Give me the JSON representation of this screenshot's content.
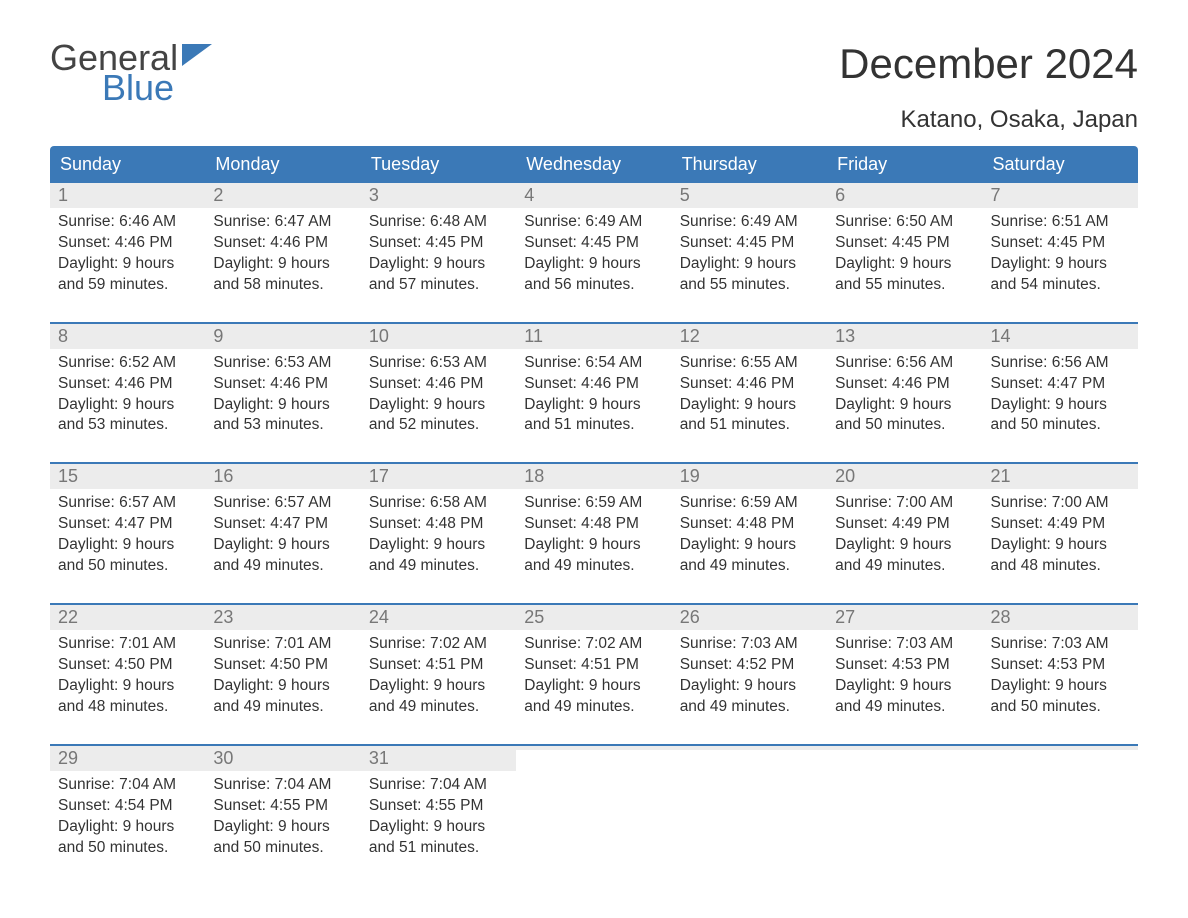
{
  "logo": {
    "word1": "General",
    "word2": "Blue"
  },
  "title": "December 2024",
  "location": "Katano, Osaka, Japan",
  "colors": {
    "header_bg": "#3b79b7",
    "daynum_bg": "#ececec",
    "text": "#333333",
    "logo_gray": "#444444",
    "logo_blue": "#3b79b7"
  },
  "day_names": [
    "Sunday",
    "Monday",
    "Tuesday",
    "Wednesday",
    "Thursday",
    "Friday",
    "Saturday"
  ],
  "weeks": [
    [
      {
        "n": "1",
        "sunrise": "Sunrise: 6:46 AM",
        "sunset": "Sunset: 4:46 PM",
        "d1": "Daylight: 9 hours",
        "d2": "and 59 minutes."
      },
      {
        "n": "2",
        "sunrise": "Sunrise: 6:47 AM",
        "sunset": "Sunset: 4:46 PM",
        "d1": "Daylight: 9 hours",
        "d2": "and 58 minutes."
      },
      {
        "n": "3",
        "sunrise": "Sunrise: 6:48 AM",
        "sunset": "Sunset: 4:45 PM",
        "d1": "Daylight: 9 hours",
        "d2": "and 57 minutes."
      },
      {
        "n": "4",
        "sunrise": "Sunrise: 6:49 AM",
        "sunset": "Sunset: 4:45 PM",
        "d1": "Daylight: 9 hours",
        "d2": "and 56 minutes."
      },
      {
        "n": "5",
        "sunrise": "Sunrise: 6:49 AM",
        "sunset": "Sunset: 4:45 PM",
        "d1": "Daylight: 9 hours",
        "d2": "and 55 minutes."
      },
      {
        "n": "6",
        "sunrise": "Sunrise: 6:50 AM",
        "sunset": "Sunset: 4:45 PM",
        "d1": "Daylight: 9 hours",
        "d2": "and 55 minutes."
      },
      {
        "n": "7",
        "sunrise": "Sunrise: 6:51 AM",
        "sunset": "Sunset: 4:45 PM",
        "d1": "Daylight: 9 hours",
        "d2": "and 54 minutes."
      }
    ],
    [
      {
        "n": "8",
        "sunrise": "Sunrise: 6:52 AM",
        "sunset": "Sunset: 4:46 PM",
        "d1": "Daylight: 9 hours",
        "d2": "and 53 minutes."
      },
      {
        "n": "9",
        "sunrise": "Sunrise: 6:53 AM",
        "sunset": "Sunset: 4:46 PM",
        "d1": "Daylight: 9 hours",
        "d2": "and 53 minutes."
      },
      {
        "n": "10",
        "sunrise": "Sunrise: 6:53 AM",
        "sunset": "Sunset: 4:46 PM",
        "d1": "Daylight: 9 hours",
        "d2": "and 52 minutes."
      },
      {
        "n": "11",
        "sunrise": "Sunrise: 6:54 AM",
        "sunset": "Sunset: 4:46 PM",
        "d1": "Daylight: 9 hours",
        "d2": "and 51 minutes."
      },
      {
        "n": "12",
        "sunrise": "Sunrise: 6:55 AM",
        "sunset": "Sunset: 4:46 PM",
        "d1": "Daylight: 9 hours",
        "d2": "and 51 minutes."
      },
      {
        "n": "13",
        "sunrise": "Sunrise: 6:56 AM",
        "sunset": "Sunset: 4:46 PM",
        "d1": "Daylight: 9 hours",
        "d2": "and 50 minutes."
      },
      {
        "n": "14",
        "sunrise": "Sunrise: 6:56 AM",
        "sunset": "Sunset: 4:47 PM",
        "d1": "Daylight: 9 hours",
        "d2": "and 50 minutes."
      }
    ],
    [
      {
        "n": "15",
        "sunrise": "Sunrise: 6:57 AM",
        "sunset": "Sunset: 4:47 PM",
        "d1": "Daylight: 9 hours",
        "d2": "and 50 minutes."
      },
      {
        "n": "16",
        "sunrise": "Sunrise: 6:57 AM",
        "sunset": "Sunset: 4:47 PM",
        "d1": "Daylight: 9 hours",
        "d2": "and 49 minutes."
      },
      {
        "n": "17",
        "sunrise": "Sunrise: 6:58 AM",
        "sunset": "Sunset: 4:48 PM",
        "d1": "Daylight: 9 hours",
        "d2": "and 49 minutes."
      },
      {
        "n": "18",
        "sunrise": "Sunrise: 6:59 AM",
        "sunset": "Sunset: 4:48 PM",
        "d1": "Daylight: 9 hours",
        "d2": "and 49 minutes."
      },
      {
        "n": "19",
        "sunrise": "Sunrise: 6:59 AM",
        "sunset": "Sunset: 4:48 PM",
        "d1": "Daylight: 9 hours",
        "d2": "and 49 minutes."
      },
      {
        "n": "20",
        "sunrise": "Sunrise: 7:00 AM",
        "sunset": "Sunset: 4:49 PM",
        "d1": "Daylight: 9 hours",
        "d2": "and 49 minutes."
      },
      {
        "n": "21",
        "sunrise": "Sunrise: 7:00 AM",
        "sunset": "Sunset: 4:49 PM",
        "d1": "Daylight: 9 hours",
        "d2": "and 48 minutes."
      }
    ],
    [
      {
        "n": "22",
        "sunrise": "Sunrise: 7:01 AM",
        "sunset": "Sunset: 4:50 PM",
        "d1": "Daylight: 9 hours",
        "d2": "and 48 minutes."
      },
      {
        "n": "23",
        "sunrise": "Sunrise: 7:01 AM",
        "sunset": "Sunset: 4:50 PM",
        "d1": "Daylight: 9 hours",
        "d2": "and 49 minutes."
      },
      {
        "n": "24",
        "sunrise": "Sunrise: 7:02 AM",
        "sunset": "Sunset: 4:51 PM",
        "d1": "Daylight: 9 hours",
        "d2": "and 49 minutes."
      },
      {
        "n": "25",
        "sunrise": "Sunrise: 7:02 AM",
        "sunset": "Sunset: 4:51 PM",
        "d1": "Daylight: 9 hours",
        "d2": "and 49 minutes."
      },
      {
        "n": "26",
        "sunrise": "Sunrise: 7:03 AM",
        "sunset": "Sunset: 4:52 PM",
        "d1": "Daylight: 9 hours",
        "d2": "and 49 minutes."
      },
      {
        "n": "27",
        "sunrise": "Sunrise: 7:03 AM",
        "sunset": "Sunset: 4:53 PM",
        "d1": "Daylight: 9 hours",
        "d2": "and 49 minutes."
      },
      {
        "n": "28",
        "sunrise": "Sunrise: 7:03 AM",
        "sunset": "Sunset: 4:53 PM",
        "d1": "Daylight: 9 hours",
        "d2": "and 50 minutes."
      }
    ],
    [
      {
        "n": "29",
        "sunrise": "Sunrise: 7:04 AM",
        "sunset": "Sunset: 4:54 PM",
        "d1": "Daylight: 9 hours",
        "d2": "and 50 minutes."
      },
      {
        "n": "30",
        "sunrise": "Sunrise: 7:04 AM",
        "sunset": "Sunset: 4:55 PM",
        "d1": "Daylight: 9 hours",
        "d2": "and 50 minutes."
      },
      {
        "n": "31",
        "sunrise": "Sunrise: 7:04 AM",
        "sunset": "Sunset: 4:55 PM",
        "d1": "Daylight: 9 hours",
        "d2": "and 51 minutes."
      },
      {
        "empty": true
      },
      {
        "empty": true
      },
      {
        "empty": true
      },
      {
        "empty": true
      }
    ]
  ]
}
